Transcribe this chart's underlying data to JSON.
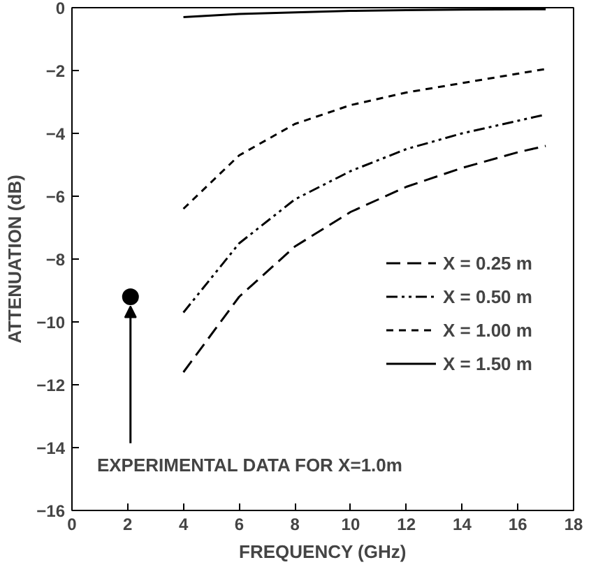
{
  "chart_data": {
    "type": "line",
    "xlabel": "FREQUENCY (GHz)",
    "ylabel": "ATTENUATION (dB)",
    "xlim": [
      0,
      18
    ],
    "ylim": [
      -16,
      0
    ],
    "xticks": [
      0,
      2,
      4,
      6,
      8,
      10,
      12,
      14,
      16,
      18
    ],
    "yticks": [
      0,
      -2,
      -4,
      -6,
      -8,
      -10,
      -12,
      -14,
      -16
    ],
    "grid": false,
    "legend": "right",
    "series": [
      {
        "name": "X = 0.25 m",
        "color": "#000000",
        "line_style": "dashed",
        "x": [
          4,
          6,
          8,
          10,
          12,
          14,
          16,
          17
        ],
        "values": [
          -11.6,
          -9.2,
          -7.6,
          -6.5,
          -5.7,
          -5.1,
          -4.6,
          -4.4
        ]
      },
      {
        "name": "X = 0.50 m",
        "color": "#000000",
        "line_style": "dashdotdot",
        "x": [
          4,
          6,
          8,
          10,
          12,
          14,
          16,
          17
        ],
        "values": [
          -9.7,
          -7.5,
          -6.1,
          -5.2,
          -4.5,
          -4.0,
          -3.6,
          -3.4
        ]
      },
      {
        "name": "X = 1.00 m",
        "color": "#000000",
        "line_style": "dotted",
        "x": [
          4,
          6,
          8,
          10,
          12,
          14,
          16,
          17
        ],
        "values": [
          -6.4,
          -4.7,
          -3.7,
          -3.1,
          -2.7,
          -2.4,
          -2.1,
          -1.95
        ]
      },
      {
        "name": "X = 1.50 m",
        "color": "#000000",
        "line_style": "solid",
        "x": [
          4,
          6,
          8,
          10,
          12,
          14,
          17
        ],
        "values": [
          -0.3,
          -0.2,
          -0.15,
          -0.1,
          -0.08,
          -0.06,
          -0.05
        ]
      },
      {
        "type": "scatter",
        "marker": "circle",
        "color": "#000000",
        "x": [
          2.1
        ],
        "values": [
          -9.2
        ]
      }
    ],
    "annotations": [
      {
        "text": "EXPERIMENTAL DATA FOR X=1.0m",
        "x": 2.1,
        "y": -9.2
      }
    ]
  }
}
